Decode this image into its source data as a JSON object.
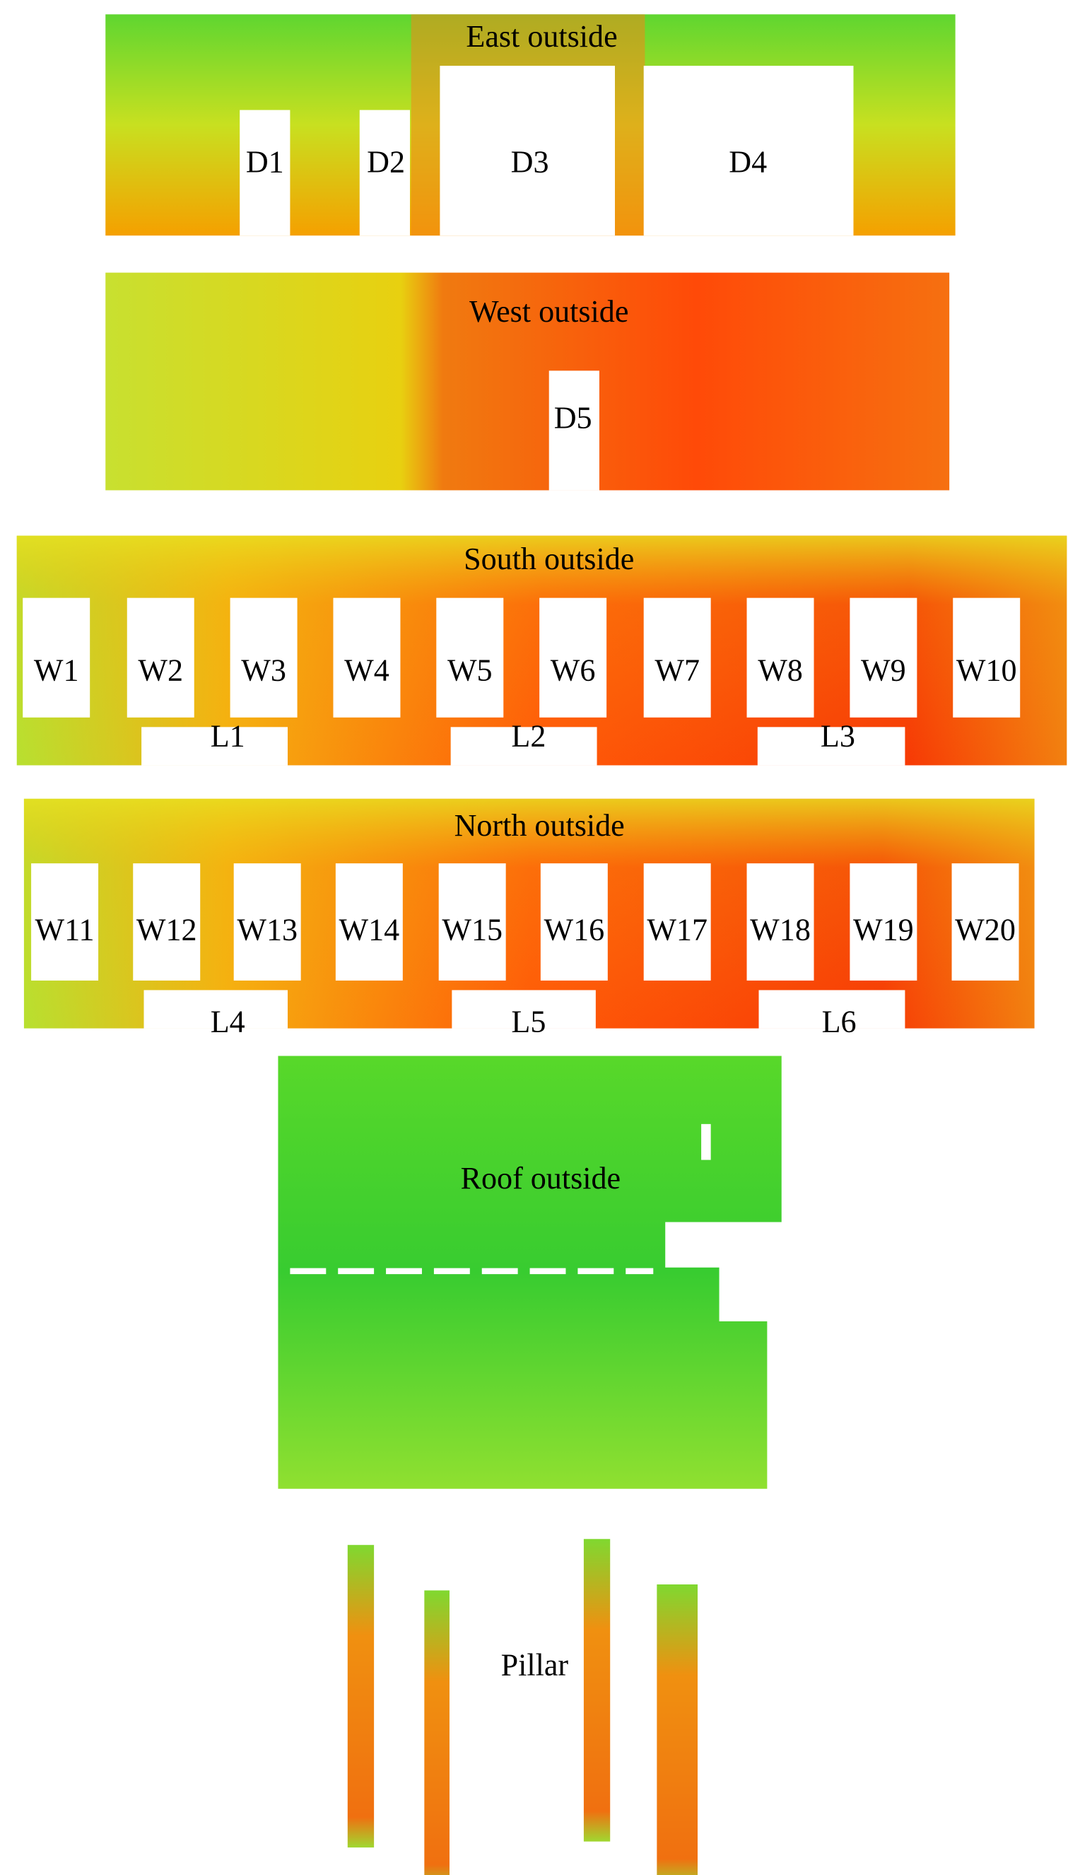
{
  "panels": [
    {
      "title": "East outside",
      "labels": [
        "D1",
        "D2",
        "D3",
        "D4"
      ]
    },
    {
      "title": "West outside",
      "labels": [
        "D5"
      ]
    },
    {
      "title": "South outside",
      "labels": [
        "W1",
        "W2",
        "W3",
        "W4",
        "W5",
        "W6",
        "W7",
        "W8",
        "W9",
        "W10",
        "L1",
        "L2",
        "L3"
      ]
    },
    {
      "title": "North outside",
      "labels": [
        "W11",
        "W12",
        "W13",
        "W14",
        "W15",
        "W16",
        "W17",
        "W18",
        "W19",
        "W20",
        "L4",
        "L5",
        "L6"
      ]
    },
    {
      "title": "Roof outside",
      "labels": []
    },
    {
      "title": "Pillar",
      "labels": []
    }
  ]
}
